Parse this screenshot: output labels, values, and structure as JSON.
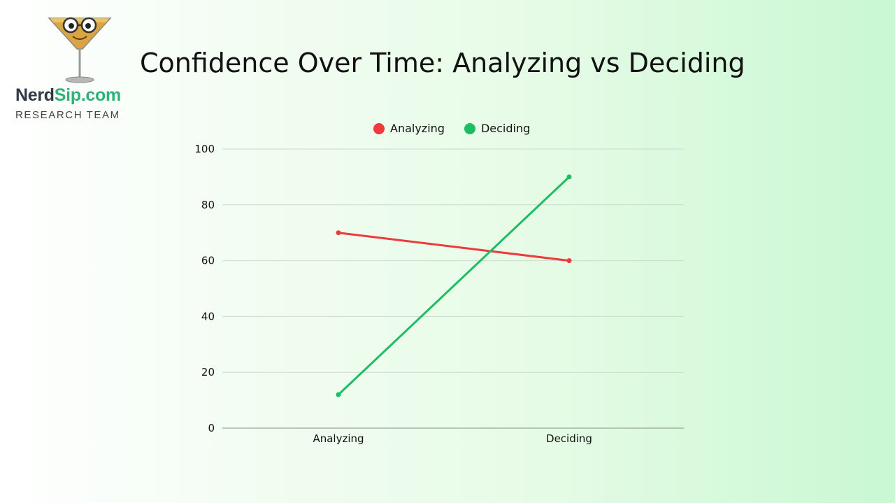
{
  "brand": {
    "name_part1": "Nerd",
    "name_part2": "Sip.com",
    "subtitle": "RESEARCH TEAM",
    "logo_icon": "martini-glass-nerd-icon"
  },
  "colors": {
    "analyzing": "#ee3a3a",
    "deciding": "#1ebc64",
    "brand_dark": "#2f3a46",
    "brand_green": "#2fb27a"
  },
  "chart_data": {
    "type": "line",
    "title": "Confidence Over Time: Analyzing vs Deciding",
    "categories": [
      "Analyzing",
      "Deciding"
    ],
    "series": [
      {
        "name": "Analyzing",
        "values": [
          70,
          60
        ],
        "color": "#ee3a3a"
      },
      {
        "name": "Deciding",
        "values": [
          12,
          90
        ],
        "color": "#1ebc64"
      }
    ],
    "xlabel": "",
    "ylabel": "",
    "ylim": [
      0,
      100
    ],
    "yticks": [
      0,
      20,
      40,
      60,
      80,
      100
    ],
    "grid": true,
    "legend_position": "top"
  }
}
